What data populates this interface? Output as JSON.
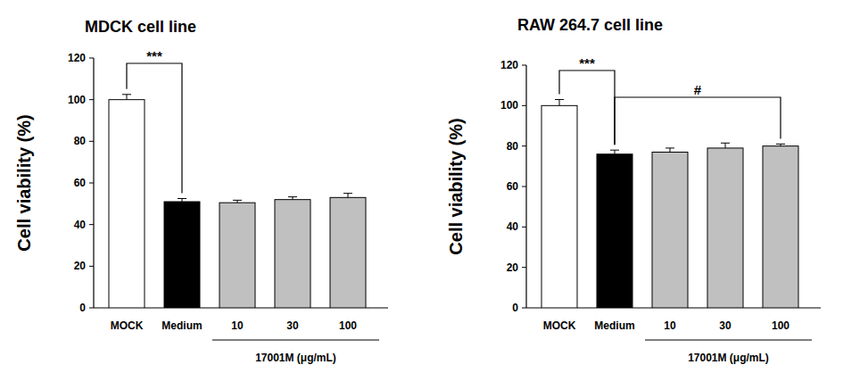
{
  "chart_data": [
    {
      "type": "bar",
      "title": "MDCK cell line",
      "y_label": "Cell viability (%)",
      "categories": [
        "MOCK",
        "Medium",
        "10",
        "30",
        "100"
      ],
      "values": [
        100,
        51,
        50.5,
        52,
        53
      ],
      "errors": [
        2.5,
        1.5,
        1.2,
        1.3,
        2
      ],
      "colors": [
        "#ffffff",
        "#000000",
        "#c0c0c0",
        "#c0c0c0",
        "#c0c0c0"
      ],
      "ylim": [
        0,
        120
      ],
      "yticks": [
        0,
        20,
        40,
        60,
        80,
        100,
        120
      ],
      "group": {
        "text": "17001M (μg/mL)",
        "from": "10",
        "to": "100"
      },
      "annotations": [
        {
          "text": "***",
          "from": "MOCK",
          "to": "Medium"
        }
      ]
    },
    {
      "type": "bar",
      "title": "RAW 264.7 cell line",
      "y_label": "Cell viability (%)",
      "categories": [
        "MOCK",
        "Medium",
        "10",
        "30",
        "100"
      ],
      "values": [
        100,
        76,
        77,
        79,
        80
      ],
      "errors": [
        3,
        2,
        2,
        2.5,
        1
      ],
      "colors": [
        "#ffffff",
        "#000000",
        "#c0c0c0",
        "#c0c0c0",
        "#c0c0c0"
      ],
      "ylim": [
        0,
        120
      ],
      "yticks": [
        0,
        20,
        40,
        60,
        80,
        100,
        120
      ],
      "group": {
        "text": "17001M (μg/mL)",
        "from": "10",
        "to": "100"
      },
      "annotations": [
        {
          "text": "***",
          "from": "MOCK",
          "to": "Medium"
        },
        {
          "text": "#",
          "from": "Medium",
          "to": "100"
        }
      ]
    }
  ]
}
